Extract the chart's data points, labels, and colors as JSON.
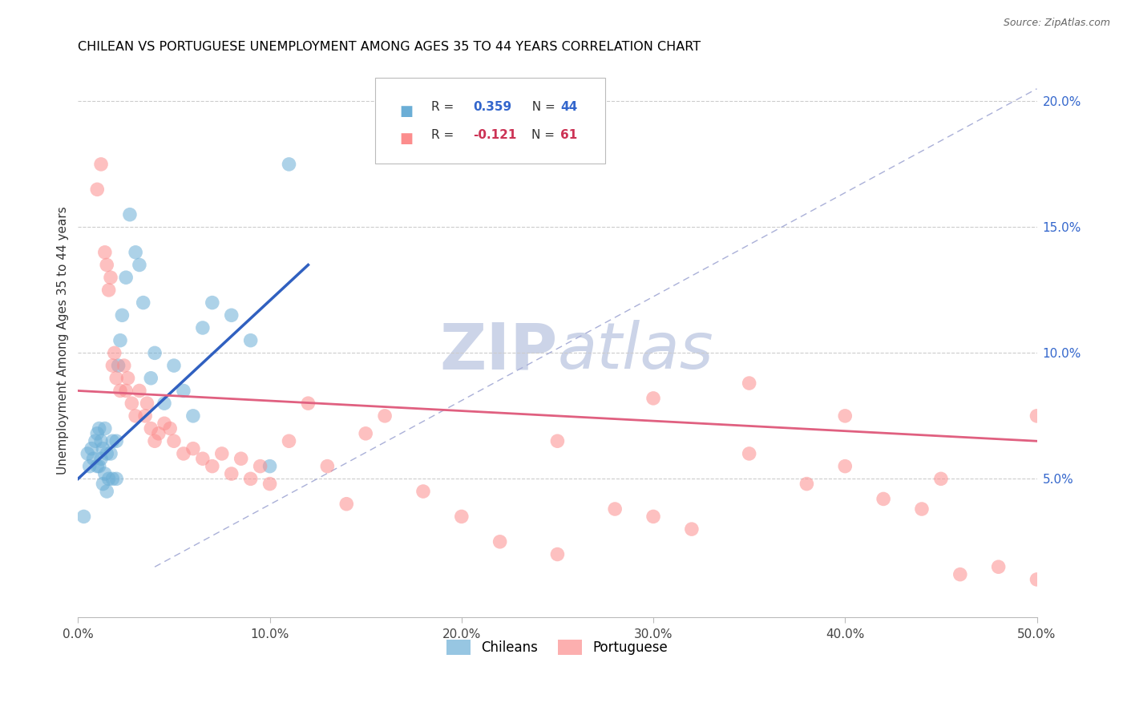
{
  "title": "CHILEAN VS PORTUGUESE UNEMPLOYMENT AMONG AGES 35 TO 44 YEARS CORRELATION CHART",
  "source": "Source: ZipAtlas.com",
  "ylabel": "Unemployment Among Ages 35 to 44 years",
  "xlim": [
    0,
    50
  ],
  "ylim": [
    -0.5,
    21.5
  ],
  "xticks": [
    0,
    10,
    20,
    30,
    40,
    50
  ],
  "xtick_labels": [
    "0.0%",
    "10.0%",
    "20.0%",
    "30.0%",
    "40.0%",
    "50.0%"
  ],
  "yticks_right": [
    5,
    10,
    15,
    20
  ],
  "ytick_labels_right": [
    "5.0%",
    "10.0%",
    "15.0%",
    "20.0%"
  ],
  "chilean_color": "#6baed6",
  "portuguese_color": "#fc8d8d",
  "blue_line_color": "#3060c0",
  "pink_line_color": "#e06080",
  "dashed_line_color": "#aab0d8",
  "watermark_color": "#ccd4e8",
  "chilean_x": [
    0.3,
    0.5,
    0.6,
    0.7,
    0.8,
    0.9,
    1.0,
    1.0,
    1.1,
    1.1,
    1.2,
    1.2,
    1.3,
    1.3,
    1.4,
    1.4,
    1.5,
    1.5,
    1.6,
    1.7,
    1.8,
    1.8,
    2.0,
    2.0,
    2.1,
    2.2,
    2.3,
    2.5,
    2.7,
    3.0,
    3.2,
    3.4,
    3.8,
    4.0,
    4.5,
    5.0,
    5.5,
    6.0,
    6.5,
    7.0,
    8.0,
    9.0,
    10.0,
    11.0
  ],
  "chilean_y": [
    3.5,
    6.0,
    5.5,
    6.2,
    5.8,
    6.5,
    6.8,
    5.5,
    7.0,
    5.5,
    6.5,
    5.8,
    6.2,
    4.8,
    7.0,
    5.2,
    6.0,
    4.5,
    5.0,
    6.0,
    6.5,
    5.0,
    6.5,
    5.0,
    9.5,
    10.5,
    11.5,
    13.0,
    15.5,
    14.0,
    13.5,
    12.0,
    9.0,
    10.0,
    8.0,
    9.5,
    8.5,
    7.5,
    11.0,
    12.0,
    11.5,
    10.5,
    5.5,
    17.5
  ],
  "portuguese_x": [
    1.0,
    1.2,
    1.4,
    1.5,
    1.6,
    1.7,
    1.8,
    1.9,
    2.0,
    2.2,
    2.4,
    2.5,
    2.6,
    2.8,
    3.0,
    3.2,
    3.5,
    3.6,
    3.8,
    4.0,
    4.2,
    4.5,
    4.8,
    5.0,
    5.5,
    6.0,
    6.5,
    7.0,
    7.5,
    8.0,
    8.5,
    9.0,
    9.5,
    10.0,
    11.0,
    12.0,
    13.0,
    14.0,
    15.0,
    16.0,
    18.0,
    20.0,
    22.0,
    25.0,
    28.0,
    30.0,
    32.0,
    35.0,
    38.0,
    40.0,
    42.0,
    44.0,
    46.0,
    48.0,
    50.0,
    25.0,
    30.0,
    35.0,
    40.0,
    45.0,
    50.0
  ],
  "portuguese_y": [
    16.5,
    17.5,
    14.0,
    13.5,
    12.5,
    13.0,
    9.5,
    10.0,
    9.0,
    8.5,
    9.5,
    8.5,
    9.0,
    8.0,
    7.5,
    8.5,
    7.5,
    8.0,
    7.0,
    6.5,
    6.8,
    7.2,
    7.0,
    6.5,
    6.0,
    6.2,
    5.8,
    5.5,
    6.0,
    5.2,
    5.8,
    5.0,
    5.5,
    4.8,
    6.5,
    8.0,
    5.5,
    4.0,
    6.8,
    7.5,
    4.5,
    3.5,
    2.5,
    2.0,
    3.8,
    3.5,
    3.0,
    6.0,
    4.8,
    5.5,
    4.2,
    3.8,
    1.2,
    1.5,
    1.0,
    6.5,
    8.2,
    8.8,
    7.5,
    5.0,
    7.5
  ]
}
